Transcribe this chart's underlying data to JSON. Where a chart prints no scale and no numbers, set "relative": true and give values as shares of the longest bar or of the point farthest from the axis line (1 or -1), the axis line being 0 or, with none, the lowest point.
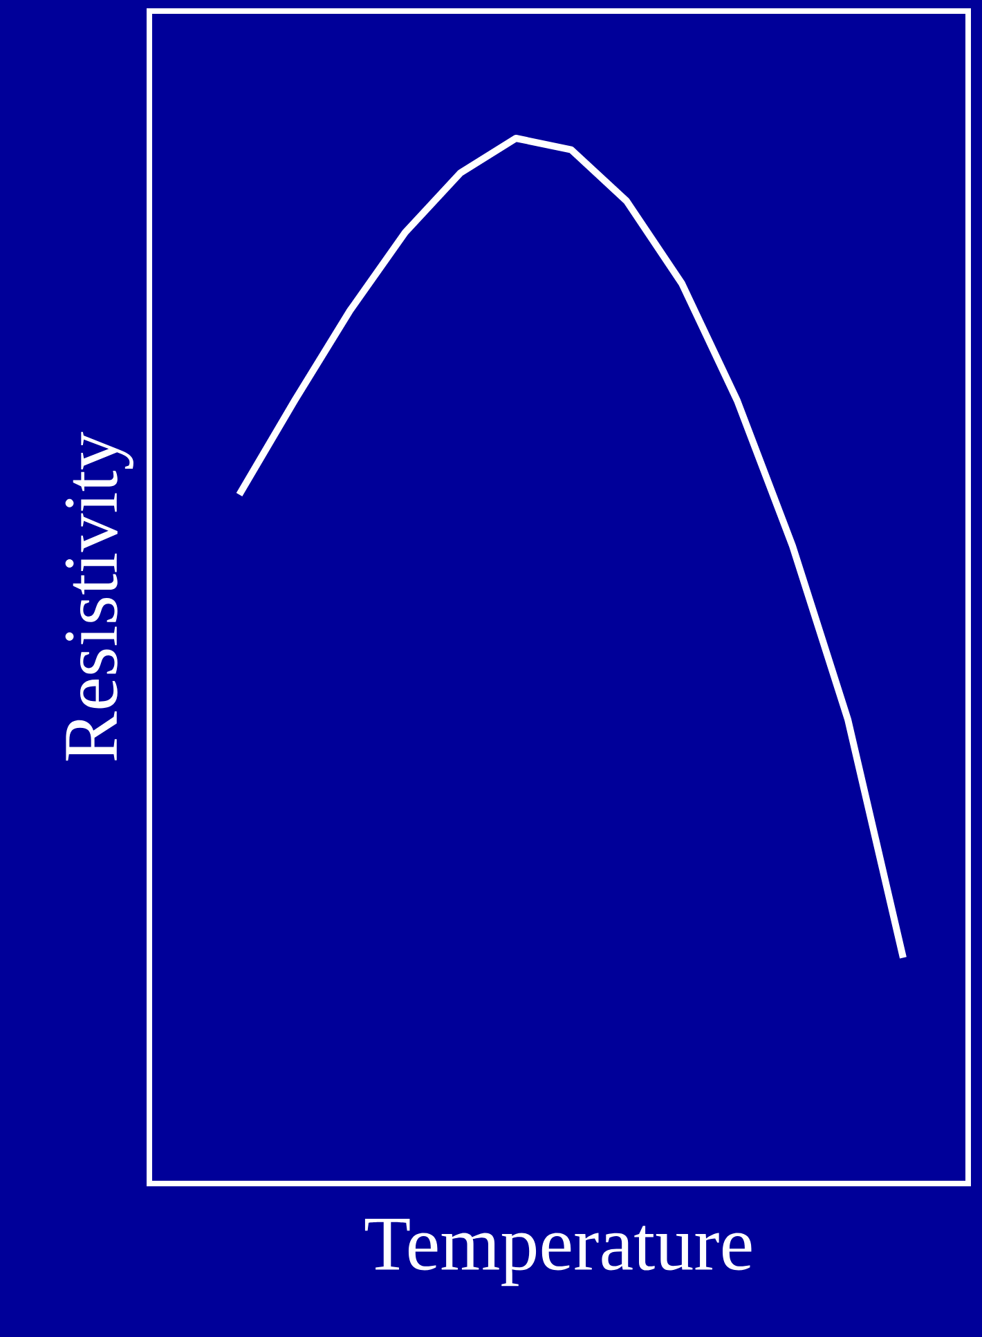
{
  "chart_data": {
    "type": "line",
    "xlabel": "Temperature",
    "ylabel": "Resistivity",
    "relative": true,
    "categories": [
      null,
      null,
      null,
      null,
      null,
      null,
      null,
      null,
      null,
      null,
      null,
      null,
      null
    ],
    "series": [
      {
        "color": "#ffffff",
        "values": [
          0.659,
          0.749,
          0.835,
          0.91,
          0.967,
          1.0,
          0.989,
          0.94,
          0.861,
          0.749,
          0.61,
          0.444,
          0.216
        ]
      }
    ],
    "marker": "none",
    "line_style": "solid"
  }
}
